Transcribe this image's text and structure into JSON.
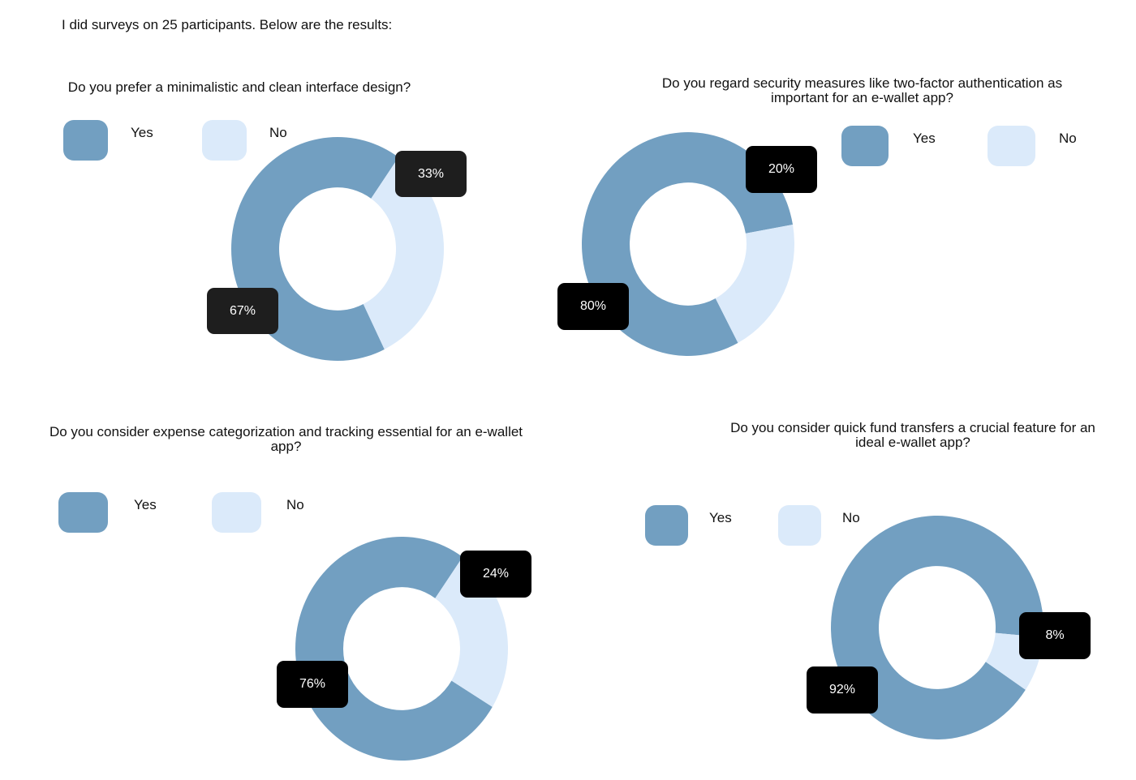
{
  "intro": "I did surveys on 25 participants. Below are the results:",
  "colors": {
    "yes": "#729fc1",
    "no": "#dbeafa"
  },
  "chart_data": [
    {
      "type": "pie",
      "title": "Do you prefer a minimalistic and clean interface design?",
      "legend": [
        "Yes",
        "No"
      ],
      "categories": [
        "Yes",
        "No"
      ],
      "values": [
        67,
        33
      ],
      "labels": [
        "67%",
        "33%"
      ]
    },
    {
      "type": "pie",
      "title": "Do you regard security measures like two-factor authentication as important for an e-wallet app?",
      "legend": [
        "Yes",
        "No"
      ],
      "categories": [
        "Yes",
        "No"
      ],
      "values": [
        80,
        20
      ],
      "labels": [
        "80%",
        "20%"
      ]
    },
    {
      "type": "pie",
      "title": "Do you consider expense categorization and tracking essential for an e-wallet app?",
      "legend": [
        "Yes",
        "No"
      ],
      "categories": [
        "Yes",
        "No"
      ],
      "values": [
        76,
        24
      ],
      "labels": [
        "76%",
        "24%"
      ]
    },
    {
      "type": "pie",
      "title": "Do you consider quick fund transfers a crucial feature for an ideal e-wallet app?",
      "legend": [
        "Yes",
        "No"
      ],
      "categories": [
        "Yes",
        "No"
      ],
      "values": [
        92,
        8
      ],
      "labels": [
        "92%",
        "8%"
      ]
    }
  ]
}
